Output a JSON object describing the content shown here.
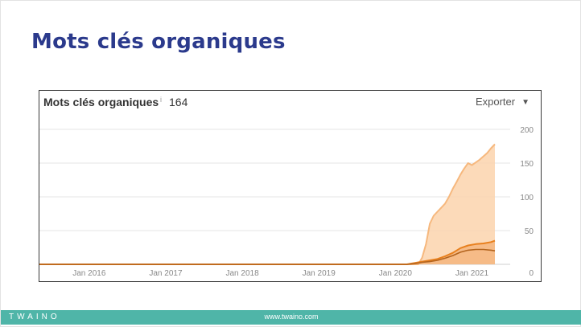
{
  "slide": {
    "title": "Mots clés organiques"
  },
  "panel": {
    "title": "Mots clés organiques",
    "info_icon": "i",
    "count": "164",
    "export_label": "Exporter",
    "export_caret": "▼"
  },
  "footer": {
    "logo_text": "TWAINO",
    "url": "www.twaino.com"
  },
  "colors": {
    "title": "#2b3a8c",
    "area_light": "#fcd4ad",
    "line_light": "#f6b87e",
    "area_dark": "#f2a766",
    "line_dark": "#e8801e",
    "line_darkest": "#b3641e",
    "footer": "#4fb5a8"
  },
  "chart_data": {
    "type": "area",
    "x_ticks": [
      "Jan 2016",
      "Jan 2017",
      "Jan 2018",
      "Jan 2019",
      "Jan 2020",
      "Jan 2021"
    ],
    "y_ticks": [
      "0",
      "50",
      "100",
      "150",
      "200"
    ],
    "xlim": [
      2015.35,
      2021.5
    ],
    "ylim": [
      0,
      200
    ],
    "grid": true,
    "series": [
      {
        "x": [
          2015.35,
          2020.3,
          2020.35,
          2020.4,
          2020.45,
          2020.5,
          2020.55,
          2020.6,
          2020.65,
          2020.7,
          2020.75,
          2020.8,
          2020.85,
          2020.9,
          2020.95,
          2021.0,
          2021.05,
          2021.1,
          2021.15,
          2021.2,
          2021.25,
          2021.3
        ],
        "y": [
          0,
          0,
          10,
          30,
          60,
          72,
          78,
          84,
          90,
          100,
          112,
          122,
          133,
          142,
          150,
          147,
          151,
          155,
          160,
          165,
          172,
          178
        ]
      },
      {
        "x": [
          2015.35,
          2020.15,
          2020.25,
          2020.35,
          2020.45,
          2020.55,
          2020.65,
          2020.75,
          2020.85,
          2020.95,
          2021.05,
          2021.15,
          2021.25,
          2021.3
        ],
        "y": [
          0,
          0,
          2,
          4,
          6,
          8,
          12,
          17,
          24,
          28,
          30,
          31,
          33,
          35
        ]
      },
      {
        "x": [
          2015.35,
          2020.15,
          2020.25,
          2020.35,
          2020.45,
          2020.55,
          2020.65,
          2020.75,
          2020.85,
          2020.95,
          2021.05,
          2021.15,
          2021.25,
          2021.3
        ],
        "y": [
          0,
          0,
          1,
          3,
          4,
          6,
          9,
          13,
          18,
          21,
          22,
          22,
          21,
          20
        ]
      }
    ]
  }
}
